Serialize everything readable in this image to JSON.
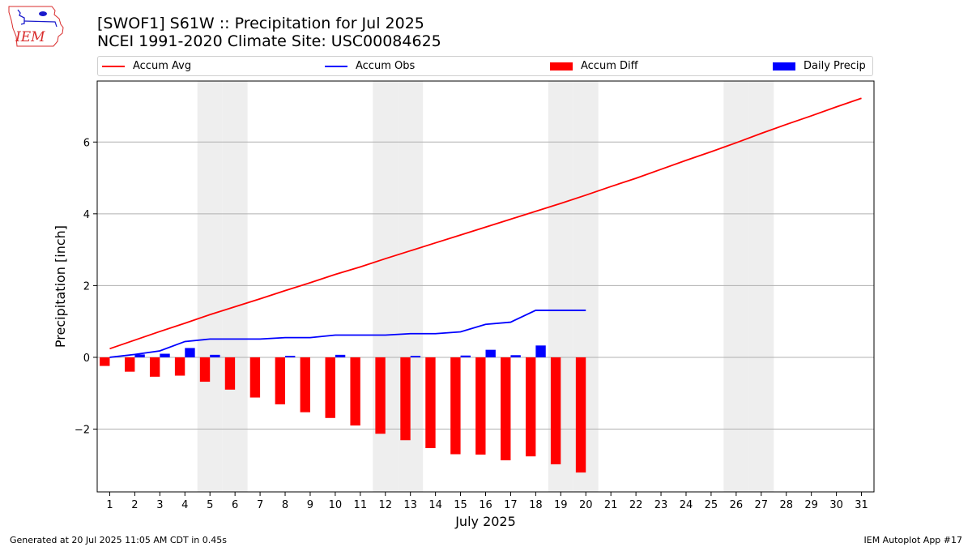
{
  "logo": {
    "text": "IEM",
    "color": "#d92b2b"
  },
  "title": {
    "line1": "[SWOF1] S61W :: Precipitation for Jul 2025",
    "line2": "NCEI 1991-2020 Climate Site: USC00084625"
  },
  "legend": [
    {
      "label": "Accum Avg",
      "kind": "line",
      "color": "#ff0000"
    },
    {
      "label": "Accum Obs",
      "kind": "line",
      "color": "#0000ff"
    },
    {
      "label": "Accum Diff",
      "kind": "bar",
      "color": "#ff0000"
    },
    {
      "label": "Daily Precip",
      "kind": "bar",
      "color": "#0000ff"
    }
  ],
  "footer": {
    "generated": "Generated at 20 Jul 2025 11:05 AM CDT in 0.45s",
    "app": "IEM Autoplot App #17"
  },
  "chart_data": {
    "type": "bar",
    "xlabel": "July 2025",
    "ylabel": "Precipitation [inch]",
    "xlim": [
      0.5,
      31.5
    ],
    "ylim": [
      -3.75,
      7.7
    ],
    "x_ticks": [
      1,
      2,
      3,
      4,
      5,
      6,
      7,
      8,
      9,
      10,
      11,
      12,
      13,
      14,
      15,
      16,
      17,
      18,
      19,
      20,
      21,
      22,
      23,
      24,
      25,
      26,
      27,
      28,
      29,
      30,
      31
    ],
    "y_ticks": [
      -2,
      0,
      2,
      4,
      6
    ],
    "y_tick_labels": [
      "−2",
      "0",
      "2",
      "4",
      "6"
    ],
    "grid": "y",
    "weekend_days": [
      5,
      6,
      12,
      13,
      19,
      20,
      26,
      27
    ],
    "weekend_color": "#eeeeee",
    "series": [
      {
        "name": "Accum Avg",
        "kind": "line",
        "color": "#ff0000",
        "x": [
          1,
          2,
          3,
          4,
          5,
          6,
          7,
          8,
          9,
          10,
          11,
          12,
          13,
          14,
          15,
          16,
          17,
          18,
          19,
          20,
          21,
          22,
          23,
          24,
          25,
          26,
          27,
          28,
          29,
          30,
          31
        ],
        "values": [
          0.24,
          0.48,
          0.72,
          0.95,
          1.19,
          1.41,
          1.63,
          1.86,
          2.08,
          2.31,
          2.52,
          2.75,
          2.97,
          3.19,
          3.41,
          3.63,
          3.85,
          4.07,
          4.29,
          4.52,
          4.76,
          4.99,
          5.24,
          5.49,
          5.73,
          5.98,
          6.24,
          6.49,
          6.73,
          6.98,
          7.22
        ]
      },
      {
        "name": "Accum Obs",
        "kind": "line",
        "color": "#0000ff",
        "x": [
          1,
          2,
          3,
          4,
          5,
          6,
          7,
          8,
          9,
          10,
          11,
          12,
          13,
          14,
          15,
          16,
          17,
          18,
          19,
          20
        ],
        "values": [
          0.0,
          0.08,
          0.18,
          0.44,
          0.51,
          0.51,
          0.51,
          0.55,
          0.55,
          0.62,
          0.62,
          0.62,
          0.66,
          0.66,
          0.71,
          0.92,
          0.98,
          1.31,
          1.31,
          1.31
        ]
      },
      {
        "name": "Accum Diff",
        "kind": "bar",
        "color": "#ff0000",
        "offset": -0.2,
        "x": [
          1,
          2,
          3,
          4,
          5,
          6,
          7,
          8,
          9,
          10,
          11,
          12,
          13,
          14,
          15,
          16,
          17,
          18,
          19,
          20
        ],
        "values": [
          -0.24,
          -0.4,
          -0.54,
          -0.51,
          -0.68,
          -0.9,
          -1.12,
          -1.31,
          -1.53,
          -1.69,
          -1.9,
          -2.13,
          -2.31,
          -2.53,
          -2.7,
          -2.71,
          -2.87,
          -2.76,
          -2.98,
          -3.21
        ]
      },
      {
        "name": "Daily Precip",
        "kind": "bar",
        "color": "#0000ff",
        "offset": 0.2,
        "x": [
          1,
          2,
          3,
          4,
          5,
          6,
          7,
          8,
          9,
          10,
          11,
          12,
          13,
          14,
          15,
          16,
          17,
          18,
          19,
          20
        ],
        "values": [
          0.0,
          0.08,
          0.1,
          0.26,
          0.07,
          0.0,
          0.0,
          0.04,
          0.0,
          0.07,
          0.0,
          0.0,
          0.04,
          0.0,
          0.05,
          0.21,
          0.06,
          0.33,
          0.0,
          0.0
        ]
      }
    ]
  }
}
